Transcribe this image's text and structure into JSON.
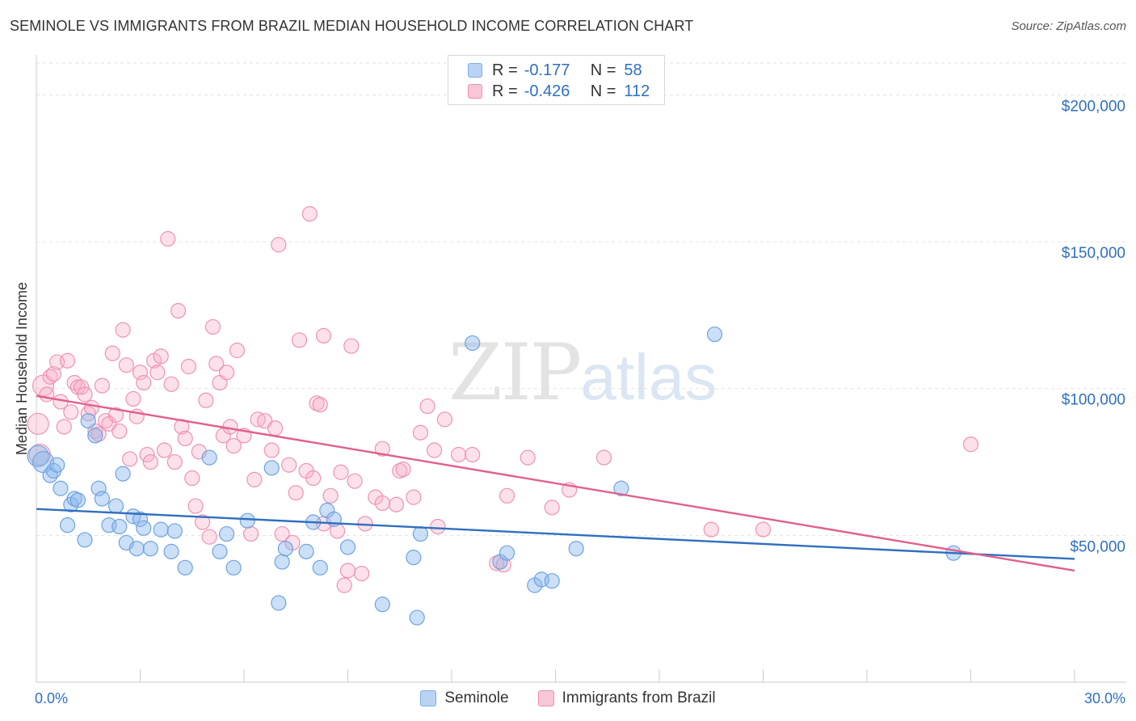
{
  "title": "SEMINOLE VS IMMIGRANTS FROM BRAZIL MEDIAN HOUSEHOLD INCOME CORRELATION CHART",
  "source": "Source: ZipAtlas.com",
  "watermark": {
    "zip": "ZIP",
    "atlas": "atlas"
  },
  "legend": {
    "r_label": "R =",
    "n_label": "N =",
    "series": [
      {
        "name": "Seminole",
        "r": "-0.177",
        "n": "58",
        "color": "#7aaee8",
        "fill": "#b9d3f3"
      },
      {
        "name": "Immigrants from Brazil",
        "r": "-0.426",
        "n": "112",
        "color": "#ee8fb0",
        "fill": "#f8c6d6"
      }
    ]
  },
  "chart_data": {
    "type": "scatter",
    "title": "SEMINOLE VS IMMIGRANTS FROM BRAZIL MEDIAN HOUSEHOLD INCOME CORRELATION CHART",
    "xlabel": "",
    "ylabel": "Median Household Income",
    "xlim": [
      0,
      30
    ],
    "ylim": [
      0,
      215000
    ],
    "x_tick_labels": [
      "0.0%",
      "30.0%"
    ],
    "y_ticks": [
      50000,
      100000,
      150000,
      200000
    ],
    "y_tick_labels": [
      "$50,000",
      "$100,000",
      "$150,000",
      "$200,000"
    ],
    "grid": true,
    "series": [
      {
        "name": "Seminole",
        "color": "#2f6fc0",
        "trend": {
          "x": [
            0,
            30
          ],
          "y": [
            59000,
            42000
          ]
        },
        "points": [
          [
            0.05,
            77000
          ],
          [
            0.2,
            75000
          ],
          [
            0.4,
            70500
          ],
          [
            0.5,
            72000
          ],
          [
            0.6,
            74000
          ],
          [
            0.7,
            66000
          ],
          [
            0.9,
            53500
          ],
          [
            1.0,
            60500
          ],
          [
            1.1,
            62500
          ],
          [
            1.2,
            62000
          ],
          [
            1.4,
            48500
          ],
          [
            1.5,
            89000
          ],
          [
            1.7,
            84000
          ],
          [
            1.8,
            66000
          ],
          [
            1.9,
            62500
          ],
          [
            2.1,
            53500
          ],
          [
            2.3,
            60000
          ],
          [
            2.4,
            53000
          ],
          [
            2.5,
            71000
          ],
          [
            2.6,
            47500
          ],
          [
            2.8,
            56500
          ],
          [
            2.9,
            45500
          ],
          [
            3.0,
            55500
          ],
          [
            3.1,
            52500
          ],
          [
            3.3,
            45500
          ],
          [
            3.6,
            52000
          ],
          [
            3.9,
            44500
          ],
          [
            4.0,
            51500
          ],
          [
            4.3,
            39000
          ],
          [
            5.0,
            76500
          ],
          [
            5.3,
            44500
          ],
          [
            5.5,
            50500
          ],
          [
            5.7,
            39000
          ],
          [
            6.1,
            55000
          ],
          [
            6.8,
            73000
          ],
          [
            7.0,
            27000
          ],
          [
            7.1,
            41000
          ],
          [
            7.2,
            45500
          ],
          [
            7.8,
            44500
          ],
          [
            8.0,
            54500
          ],
          [
            8.2,
            39000
          ],
          [
            8.4,
            58500
          ],
          [
            8.6,
            55500
          ],
          [
            9.0,
            46000
          ],
          [
            10.0,
            26500
          ],
          [
            10.9,
            42500
          ],
          [
            11.0,
            22000
          ],
          [
            11.1,
            50500
          ],
          [
            12.6,
            115500
          ],
          [
            13.4,
            41000
          ],
          [
            13.6,
            44000
          ],
          [
            14.4,
            33000
          ],
          [
            14.6,
            35000
          ],
          [
            14.9,
            34500
          ],
          [
            15.6,
            45500
          ],
          [
            16.9,
            66000
          ],
          [
            19.6,
            118500
          ],
          [
            26.5,
            44000
          ]
        ]
      },
      {
        "name": "Immigrants from Brazil",
        "color": "#e0608a",
        "trend": {
          "x": [
            0,
            30
          ],
          "y": [
            97500,
            38000
          ]
        },
        "points": [
          [
            0.05,
            88000
          ],
          [
            0.1,
            77500
          ],
          [
            0.2,
            101000
          ],
          [
            0.3,
            98000
          ],
          [
            0.4,
            104000
          ],
          [
            0.5,
            105000
          ],
          [
            0.6,
            109000
          ],
          [
            0.7,
            95500
          ],
          [
            0.8,
            87000
          ],
          [
            0.9,
            109500
          ],
          [
            1.0,
            92000
          ],
          [
            1.1,
            102000
          ],
          [
            1.2,
            100500
          ],
          [
            1.3,
            100500
          ],
          [
            1.4,
            98000
          ],
          [
            1.5,
            91500
          ],
          [
            1.6,
            93500
          ],
          [
            1.7,
            85500
          ],
          [
            1.8,
            84500
          ],
          [
            1.9,
            101000
          ],
          [
            2.0,
            89000
          ],
          [
            2.1,
            88000
          ],
          [
            2.2,
            112000
          ],
          [
            2.3,
            91000
          ],
          [
            2.4,
            85500
          ],
          [
            2.5,
            120000
          ],
          [
            2.6,
            108000
          ],
          [
            2.7,
            76000
          ],
          [
            2.8,
            96500
          ],
          [
            2.9,
            90500
          ],
          [
            3.0,
            105500
          ],
          [
            3.1,
            102000
          ],
          [
            3.2,
            77500
          ],
          [
            3.3,
            75000
          ],
          [
            3.4,
            109500
          ],
          [
            3.5,
            105500
          ],
          [
            3.6,
            111000
          ],
          [
            3.7,
            79000
          ],
          [
            3.8,
            151000
          ],
          [
            3.9,
            101500
          ],
          [
            4.0,
            75000
          ],
          [
            4.1,
            126500
          ],
          [
            4.2,
            87000
          ],
          [
            4.3,
            83000
          ],
          [
            4.4,
            107500
          ],
          [
            4.5,
            69500
          ],
          [
            4.6,
            60000
          ],
          [
            4.7,
            78500
          ],
          [
            4.8,
            54500
          ],
          [
            4.9,
            96000
          ],
          [
            5.0,
            49500
          ],
          [
            5.1,
            121000
          ],
          [
            5.2,
            108500
          ],
          [
            5.3,
            102000
          ],
          [
            5.4,
            84000
          ],
          [
            5.5,
            105500
          ],
          [
            5.6,
            87000
          ],
          [
            5.7,
            80500
          ],
          [
            5.8,
            113000
          ],
          [
            6.0,
            84000
          ],
          [
            6.2,
            50500
          ],
          [
            6.3,
            69000
          ],
          [
            6.4,
            89500
          ],
          [
            6.6,
            89000
          ],
          [
            6.8,
            79000
          ],
          [
            6.9,
            86500
          ],
          [
            7.0,
            149000
          ],
          [
            7.1,
            50500
          ],
          [
            7.3,
            74000
          ],
          [
            7.5,
            64500
          ],
          [
            7.6,
            116500
          ],
          [
            7.8,
            72000
          ],
          [
            7.9,
            159500
          ],
          [
            8.0,
            69500
          ],
          [
            8.1,
            95000
          ],
          [
            8.2,
            94500
          ],
          [
            8.3,
            118000
          ],
          [
            8.5,
            63500
          ],
          [
            8.7,
            51500
          ],
          [
            8.8,
            71500
          ],
          [
            8.9,
            33000
          ],
          [
            9.1,
            114500
          ],
          [
            9.2,
            68500
          ],
          [
            9.4,
            37000
          ],
          [
            9.5,
            54000
          ],
          [
            9.8,
            63000
          ],
          [
            10.0,
            79500
          ],
          [
            10.4,
            60500
          ],
          [
            10.5,
            72000
          ],
          [
            10.6,
            72500
          ],
          [
            10.9,
            63000
          ],
          [
            11.1,
            85000
          ],
          [
            11.3,
            94000
          ],
          [
            11.5,
            79000
          ],
          [
            11.6,
            53000
          ],
          [
            11.8,
            89500
          ],
          [
            12.2,
            77500
          ],
          [
            12.6,
            77500
          ],
          [
            13.3,
            40500
          ],
          [
            13.6,
            63500
          ],
          [
            14.2,
            76500
          ],
          [
            14.9,
            59500
          ],
          [
            15.4,
            65500
          ],
          [
            16.4,
            76500
          ],
          [
            19.5,
            52000
          ],
          [
            21.0,
            52000
          ],
          [
            27.0,
            81000
          ],
          [
            8.3,
            54000
          ],
          [
            9.0,
            38000
          ],
          [
            10.0,
            61000
          ],
          [
            13.5,
            40000
          ],
          [
            7.4,
            47500
          ]
        ]
      }
    ]
  }
}
